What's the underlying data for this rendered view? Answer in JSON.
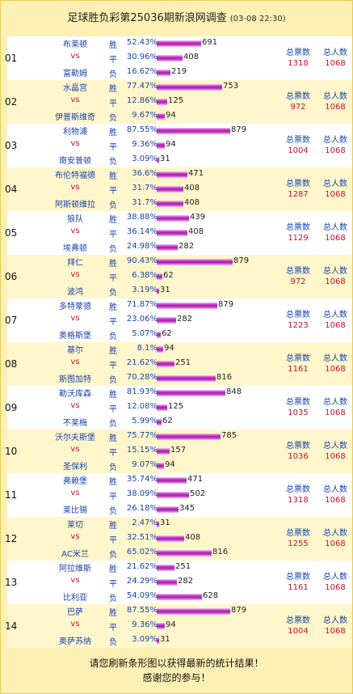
{
  "header": {
    "title": "足球胜负彩第25036期新浪网调查",
    "time": "(03-08 22:30)"
  },
  "labels": {
    "win": "胜",
    "draw": "平",
    "loss": "负",
    "vs": "vs",
    "total_votes": "总票数",
    "total_people": "总人数"
  },
  "matches": [
    {
      "no": "01",
      "home": "布莱顿",
      "away": "富勒姆",
      "rows": [
        {
          "pct": "52.43%",
          "count": 691,
          "share": 0.5243
        },
        {
          "pct": "30.96%",
          "count": 408,
          "share": 0.3096
        },
        {
          "pct": "16.62%",
          "count": 219,
          "share": 0.1662
        }
      ],
      "total_votes": "1318",
      "total_people": "1068"
    },
    {
      "no": "02",
      "home": "水晶宫",
      "away": "伊普斯维奇",
      "rows": [
        {
          "pct": "77.47%",
          "count": 753,
          "share": 0.7747
        },
        {
          "pct": "12.86%",
          "count": 125,
          "share": 0.1286
        },
        {
          "pct": " 9.67%",
          "count": 94,
          "share": 0.0967
        }
      ],
      "total_votes": "972",
      "total_people": "1068"
    },
    {
      "no": "03",
      "home": "利物浦",
      "away": "南安普顿",
      "rows": [
        {
          "pct": "87.55%",
          "count": 879,
          "share": 0.8755
        },
        {
          "pct": " 9.36%",
          "count": 94,
          "share": 0.0936
        },
        {
          "pct": " 3.09%",
          "count": 31,
          "share": 0.0309
        }
      ],
      "total_votes": "1004",
      "total_people": "1068"
    },
    {
      "no": "04",
      "home": "布伦特福德",
      "away": "阿斯顿维拉",
      "rows": [
        {
          "pct": "36.6%",
          "count": 471,
          "share": 0.366
        },
        {
          "pct": "31.7%",
          "count": 408,
          "share": 0.317
        },
        {
          "pct": "31.7%",
          "count": 408,
          "share": 0.317
        }
      ],
      "total_votes": "1287",
      "total_people": "1068"
    },
    {
      "no": "05",
      "home": "狼队",
      "away": "埃弗顿",
      "rows": [
        {
          "pct": "38.88%",
          "count": 439,
          "share": 0.3888
        },
        {
          "pct": "36.14%",
          "count": 408,
          "share": 0.3614
        },
        {
          "pct": "24.98%",
          "count": 282,
          "share": 0.2498
        }
      ],
      "total_votes": "1129",
      "total_people": "1068"
    },
    {
      "no": "06",
      "home": "拜仁",
      "away": "波鸿",
      "rows": [
        {
          "pct": "90.43%",
          "count": 879,
          "share": 0.9043
        },
        {
          "pct": " 6.38%",
          "count": 62,
          "share": 0.0638
        },
        {
          "pct": " 3.19%",
          "count": 31,
          "share": 0.0319
        }
      ],
      "total_votes": "972",
      "total_people": "1068"
    },
    {
      "no": "07",
      "home": "多特蒙德",
      "away": "奥格斯堡",
      "rows": [
        {
          "pct": "71.87%",
          "count": 879,
          "share": 0.7187
        },
        {
          "pct": "23.06%",
          "count": 282,
          "share": 0.2306
        },
        {
          "pct": " 5.07%",
          "count": 62,
          "share": 0.0507
        }
      ],
      "total_votes": "1223",
      "total_people": "1068"
    },
    {
      "no": "08",
      "home": "基尔",
      "away": "斯图加特",
      "rows": [
        {
          "pct": " 8.1%",
          "count": 94,
          "share": 0.081
        },
        {
          "pct": "21.62%",
          "count": 251,
          "share": 0.2162
        },
        {
          "pct": "70.28%",
          "count": 816,
          "share": 0.7028
        }
      ],
      "total_votes": "1161",
      "total_people": "1068"
    },
    {
      "no": "09",
      "home": "勒沃库森",
      "away": "不莱梅",
      "rows": [
        {
          "pct": "81.93%",
          "count": 848,
          "share": 0.8193
        },
        {
          "pct": "12.08%",
          "count": 125,
          "share": 0.1208
        },
        {
          "pct": " 5.99%",
          "count": 62,
          "share": 0.0599
        }
      ],
      "total_votes": "1035",
      "total_people": "1068"
    },
    {
      "no": "10",
      "home": "沃尔夫斯堡",
      "away": "圣保利",
      "rows": [
        {
          "pct": "75.77%",
          "count": 785,
          "share": 0.7577
        },
        {
          "pct": "15.15%",
          "count": 157,
          "share": 0.1515
        },
        {
          "pct": " 9.07%",
          "count": 94,
          "share": 0.0907
        }
      ],
      "total_votes": "1036",
      "total_people": "1068"
    },
    {
      "no": "11",
      "home": "弗赖堡",
      "away": "莱比锡",
      "rows": [
        {
          "pct": "35.74%",
          "count": 471,
          "share": 0.3574
        },
        {
          "pct": "38.09%",
          "count": 502,
          "share": 0.3809
        },
        {
          "pct": "26.18%",
          "count": 345,
          "share": 0.2618
        }
      ],
      "total_votes": "1318",
      "total_people": "1068"
    },
    {
      "no": "12",
      "home": "莱切",
      "away": "AC米兰",
      "rows": [
        {
          "pct": " 2.47%",
          "count": 31,
          "share": 0.0247
        },
        {
          "pct": "32.51%",
          "count": 408,
          "share": 0.3251
        },
        {
          "pct": "65.02%",
          "count": 816,
          "share": 0.6502
        }
      ],
      "total_votes": "1255",
      "total_people": "1068"
    },
    {
      "no": "13",
      "home": "阿拉维斯",
      "away": "比利亚",
      "rows": [
        {
          "pct": "21.62%",
          "count": 251,
          "share": 0.2162
        },
        {
          "pct": "24.29%",
          "count": 282,
          "share": 0.2429
        },
        {
          "pct": "54.09%",
          "count": 628,
          "share": 0.5409
        }
      ],
      "total_votes": "1161",
      "total_people": "1068"
    },
    {
      "no": "14",
      "home": "巴萨",
      "away": "奥萨苏纳",
      "rows": [
        {
          "pct": "87.55%",
          "count": 879,
          "share": 0.8755
        },
        {
          "pct": " 9.36%",
          "count": 94,
          "share": 0.0936
        },
        {
          "pct": " 3.09%",
          "count": 31,
          "share": 0.0309
        }
      ],
      "total_votes": "1004",
      "total_people": "1068"
    }
  ],
  "footer": {
    "line1": "请您刷新条形图以获得最新的统计结果！",
    "line2": "感谢您的参与！"
  },
  "colors": {
    "bar": "#c23cc2",
    "team": "#1a44aa",
    "vs": "#c8102e",
    "background": "#fdf0b4"
  }
}
